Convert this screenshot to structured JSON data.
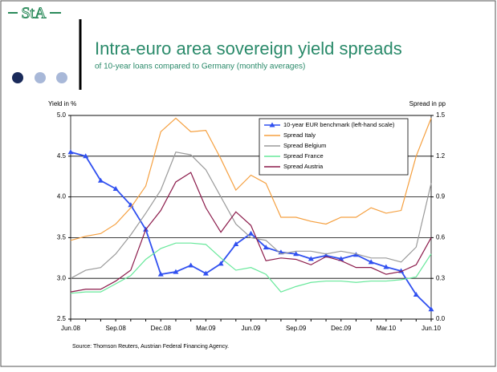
{
  "logo": "StA",
  "chart_data": {
    "type": "line",
    "title": "Intra-euro area sovereign yield spreads",
    "subtitle": "of 10-year loans compared to Germany (monthly averages)",
    "ylabel": "Yield in %",
    "y2label": "Spread in pp",
    "source": "Source: Thomson Reuters, Austrian Federal Financing Agency.",
    "categories": [
      "Jun.08",
      null,
      null,
      "Sep.08",
      null,
      null,
      "Dec.08",
      null,
      null,
      "Mar.09",
      null,
      null,
      "Jun.09",
      null,
      null,
      "Sep.09",
      null,
      null,
      "Dec.09",
      null,
      null,
      "Mar.10",
      null,
      null,
      "Jun.10"
    ],
    "ylim": [
      2.5,
      5.0
    ],
    "yticks": [
      2.5,
      {
        "value": 3.0,
        "label": "3.0"
      },
      3.5,
      {
        "value": 4.0,
        "label": "4.0"
      },
      4.5,
      {
        "value": 5.0,
        "label": "5.0"
      }
    ],
    "y2lim": [
      0.0,
      1.5
    ],
    "y2ticks": [
      {
        "value": 0.0,
        "label": "0.0"
      },
      0.3,
      0.6,
      0.9,
      1.2,
      1.5
    ],
    "grid": true,
    "legend": "top",
    "series": [
      {
        "name": "10-year EUR benchmark (left-hand scale)",
        "color": "#3050f0",
        "marker": "triangle",
        "values": [
          4.55,
          4.5,
          4.2,
          4.1,
          3.9,
          3.6,
          3.05,
          3.08,
          3.16,
          3.06,
          3.18,
          3.42,
          3.55,
          3.38,
          3.32,
          3.3,
          3.24,
          3.28,
          3.24,
          3.29,
          3.2,
          3.14,
          3.09,
          2.8,
          2.62
        ]
      },
      {
        "name": "Spread Italy",
        "color": "#f5a040",
        "axis": "y2",
        "values": [
          0.58,
          0.61,
          0.63,
          0.7,
          0.82,
          0.98,
          1.38,
          1.48,
          1.38,
          1.39,
          1.18,
          0.95,
          1.06,
          1.0,
          0.75,
          0.75,
          0.72,
          0.7,
          0.75,
          0.75,
          0.82,
          0.78,
          0.8,
          1.2,
          1.48
        ]
      },
      {
        "name": "Spread Belgium",
        "color": "#9a9a9a",
        "axis": "y2",
        "values": [
          0.3,
          0.36,
          0.38,
          0.48,
          0.62,
          0.78,
          0.95,
          1.23,
          1.21,
          1.1,
          0.9,
          0.7,
          0.6,
          0.58,
          0.48,
          0.5,
          0.5,
          0.48,
          0.5,
          0.48,
          0.45,
          0.45,
          0.42,
          0.53,
          1.0
        ]
      },
      {
        "name": "Spread France",
        "color": "#66e89a",
        "axis": "y2",
        "values": [
          0.19,
          0.2,
          0.2,
          0.26,
          0.32,
          0.44,
          0.52,
          0.56,
          0.56,
          0.55,
          0.45,
          0.36,
          0.38,
          0.33,
          0.2,
          0.24,
          0.27,
          0.28,
          0.28,
          0.27,
          0.28,
          0.28,
          0.29,
          0.31,
          0.48
        ]
      },
      {
        "name": "Spread Austria",
        "color": "#8b1a4a",
        "axis": "y2",
        "values": [
          0.2,
          0.22,
          0.22,
          0.28,
          0.36,
          0.66,
          0.8,
          1.01,
          1.08,
          0.82,
          0.64,
          0.79,
          0.69,
          0.43,
          0.45,
          0.44,
          0.4,
          0.46,
          0.43,
          0.38,
          0.38,
          0.33,
          0.35,
          0.4,
          0.6
        ]
      }
    ]
  }
}
